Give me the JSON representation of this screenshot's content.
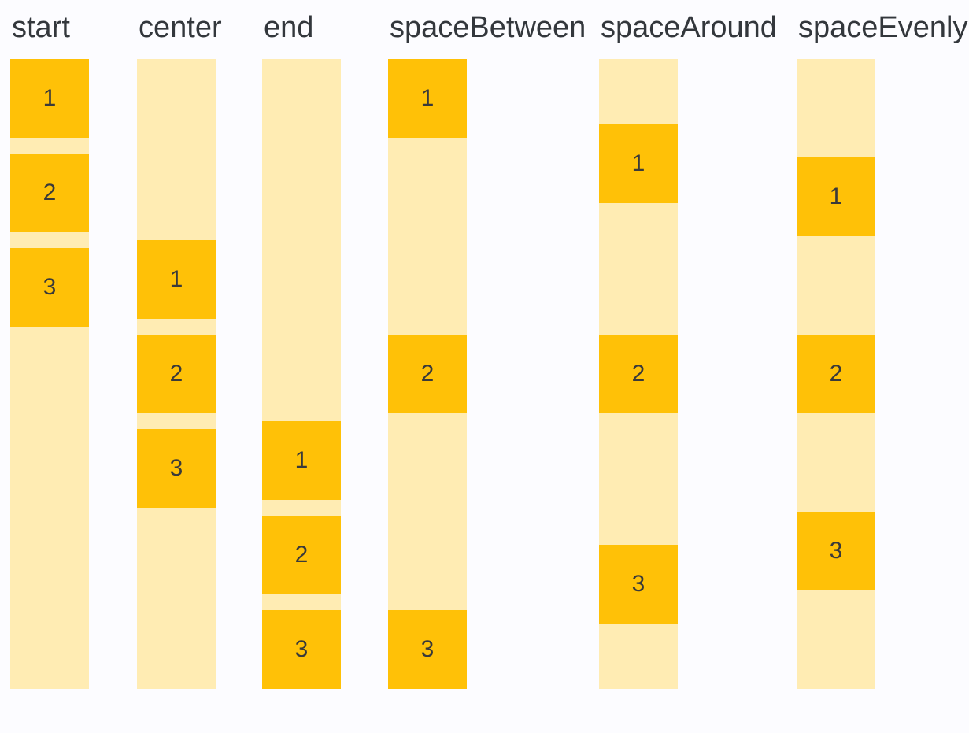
{
  "colors": {
    "page_background": "#FCFCFF",
    "container_fill": "#FFECB3",
    "item_fill": "#FFC107",
    "label_text": "#33373C",
    "item_text": "#3A3A3A"
  },
  "columns": [
    {
      "label": "start",
      "justify_content": "start",
      "items": [
        "1",
        "2",
        "3"
      ]
    },
    {
      "label": "center",
      "justify_content": "center",
      "items": [
        "1",
        "2",
        "3"
      ]
    },
    {
      "label": "end",
      "justify_content": "end",
      "items": [
        "1",
        "2",
        "3"
      ]
    },
    {
      "label": "spaceBetween",
      "justify_content": "spaceBetween",
      "items": [
        "1",
        "2",
        "3"
      ]
    },
    {
      "label": "spaceAround",
      "justify_content": "spaceAround",
      "items": [
        "1",
        "2",
        "3"
      ]
    },
    {
      "label": "spaceEvenly",
      "justify_content": "spaceEvenly",
      "items": [
        "1",
        "2",
        "3"
      ]
    }
  ]
}
